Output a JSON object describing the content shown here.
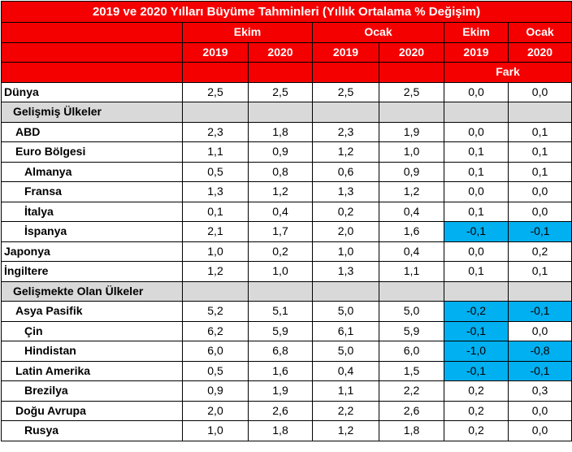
{
  "title": "2019 ve 2020 Yılları Büyüme Tahminleri (Yıllık Ortalama % Değişim)",
  "headers": {
    "group1": "Ekim",
    "group2": "Ocak",
    "group3": "Ekim",
    "group4": "Ocak",
    "years": [
      "2019",
      "2020",
      "2019",
      "2020",
      "2019",
      "2020"
    ],
    "diff_label": "Fark"
  },
  "rows": [
    {
      "label": "Dünya",
      "indent": 0,
      "values": [
        "2,5",
        "2,5",
        "2,5",
        "2,5",
        "0,0",
        "0,0"
      ],
      "highlight": [
        false,
        false
      ]
    },
    {
      "label": "Gelişmiş Ülkeler",
      "section": true
    },
    {
      "label": "ABD",
      "indent": 1,
      "values": [
        "2,3",
        "1,8",
        "2,3",
        "1,9",
        "0,0",
        "0,1"
      ],
      "highlight": [
        false,
        false
      ]
    },
    {
      "label": "Euro Bölgesi",
      "indent": 1,
      "values": [
        "1,1",
        "0,9",
        "1,2",
        "1,0",
        "0,1",
        "0,1"
      ],
      "highlight": [
        false,
        false
      ]
    },
    {
      "label": "Almanya",
      "indent": 2,
      "values": [
        "0,5",
        "0,8",
        "0,6",
        "0,9",
        "0,1",
        "0,1"
      ],
      "highlight": [
        false,
        false
      ]
    },
    {
      "label": "Fransa",
      "indent": 2,
      "values": [
        "1,3",
        "1,2",
        "1,3",
        "1,2",
        "0,0",
        "0,0"
      ],
      "highlight": [
        false,
        false
      ]
    },
    {
      "label": "İtalya",
      "indent": 2,
      "values": [
        "0,1",
        "0,4",
        "0,2",
        "0,4",
        "0,1",
        "0,0"
      ],
      "highlight": [
        false,
        false
      ]
    },
    {
      "label": "İspanya",
      "indent": 2,
      "values": [
        "2,1",
        "1,7",
        "2,0",
        "1,6",
        "-0,1",
        "-0,1"
      ],
      "highlight": [
        true,
        true
      ]
    },
    {
      "label": "Japonya",
      "indent": 0,
      "values": [
        "1,0",
        "0,2",
        "1,0",
        "0,4",
        "0,0",
        "0,2"
      ],
      "highlight": [
        false,
        false
      ]
    },
    {
      "label": "İngiltere",
      "indent": 0,
      "values": [
        "1,2",
        "1,0",
        "1,3",
        "1,1",
        "0,1",
        "0,1"
      ],
      "highlight": [
        false,
        false
      ]
    },
    {
      "label": "Gelişmekte Olan Ülkeler",
      "section": true
    },
    {
      "label": "Asya Pasifik",
      "indent": 1,
      "values": [
        "5,2",
        "5,1",
        "5,0",
        "5,0",
        "-0,2",
        "-0,1"
      ],
      "highlight": [
        true,
        true
      ]
    },
    {
      "label": "Çin",
      "indent": 2,
      "values": [
        "6,2",
        "5,9",
        "6,1",
        "5,9",
        "-0,1",
        "0,0"
      ],
      "highlight": [
        true,
        false
      ]
    },
    {
      "label": "Hindistan",
      "indent": 2,
      "values": [
        "6,0",
        "6,8",
        "5,0",
        "6,0",
        "-1,0",
        "-0,8"
      ],
      "highlight": [
        true,
        true
      ]
    },
    {
      "label": "Latin Amerika",
      "indent": 1,
      "values": [
        "0,5",
        "1,6",
        "0,4",
        "1,5",
        "-0,1",
        "-0,1"
      ],
      "highlight": [
        true,
        true
      ]
    },
    {
      "label": "Brezilya",
      "indent": 2,
      "values": [
        "0,9",
        "1,9",
        "1,1",
        "2,2",
        "0,2",
        "0,3"
      ],
      "highlight": [
        false,
        false
      ]
    },
    {
      "label": "Doğu Avrupa",
      "indent": 1,
      "values": [
        "2,0",
        "2,6",
        "2,2",
        "2,6",
        "0,2",
        "0,0"
      ],
      "highlight": [
        false,
        false
      ]
    },
    {
      "label": "Rusya",
      "indent": 2,
      "values": [
        "1,0",
        "1,8",
        "1,2",
        "1,8",
        "0,2",
        "0,0"
      ],
      "highlight": [
        false,
        false
      ]
    }
  ],
  "colors": {
    "header_bg": "#f50000",
    "section_bg": "#d9d9d9",
    "highlight_bg": "#00b0f0"
  }
}
